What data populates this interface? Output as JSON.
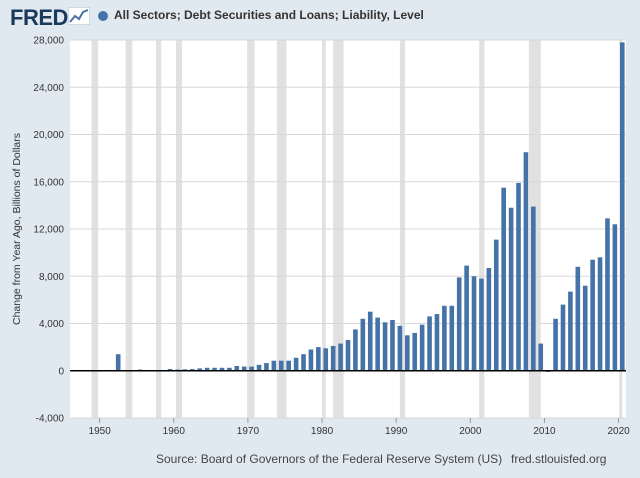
{
  "header": {
    "logo_text": "FRED",
    "series_title": "All Sectors; Debt Securities and Loans; Liability, Level"
  },
  "footer": {
    "source": "Source: Board of Governors of the Federal Reserve System (US)",
    "url": "fred.stlouisfed.org"
  },
  "chart_data": {
    "type": "bar",
    "title": "All Sectors; Debt Securities and Loans; Liability, Level",
    "ylabel": "Change from Year Ago, Billions of Dollars",
    "xlabel": "",
    "ylim": [
      -4000,
      28000
    ],
    "xlim": [
      1946,
      2021
    ],
    "yticks": [
      -4000,
      0,
      4000,
      8000,
      12000,
      16000,
      20000,
      24000,
      28000
    ],
    "ytick_labels": [
      "-4,000",
      "0",
      "4,000",
      "8,000",
      "12,000",
      "16,000",
      "20,000",
      "24,000",
      "28,000"
    ],
    "xticks": [
      1950,
      1960,
      1970,
      1980,
      1990,
      2000,
      2010,
      2020
    ],
    "recessions": [
      [
        1948.9,
        1949.8
      ],
      [
        1953.5,
        1954.4
      ],
      [
        1957.6,
        1958.3
      ],
      [
        1960.3,
        1961.1
      ],
      [
        1969.9,
        1970.9
      ],
      [
        1973.9,
        1975.2
      ],
      [
        1980.0,
        1980.5
      ],
      [
        1981.5,
        1982.9
      ],
      [
        1990.5,
        1991.2
      ],
      [
        2001.2,
        2001.9
      ],
      [
        2007.9,
        2009.5
      ],
      [
        2020.1,
        2020.4
      ]
    ],
    "colors": {
      "bar": "#4572a7",
      "recession": "#e1e1e1",
      "zero_line": "#000000"
    },
    "series": [
      {
        "x": [
          1952,
          1955,
          1959,
          1960,
          1961,
          1962,
          1963,
          1964,
          1965,
          1966,
          1967,
          1968,
          1969,
          1970,
          1971,
          1972,
          1973,
          1974,
          1975,
          1976,
          1977,
          1978,
          1979,
          1980,
          1981,
          1982,
          1983,
          1984,
          1985,
          1986,
          1987,
          1988,
          1989,
          1990,
          1991,
          1992,
          1993,
          1994,
          1995,
          1996,
          1997,
          1998,
          1999,
          2000,
          2001,
          2002,
          2003,
          2004,
          2005,
          2006,
          2007,
          2008,
          2009,
          2010,
          2011,
          2012,
          2013,
          2014,
          2015,
          2016,
          2017,
          2018,
          2019,
          2020
        ],
        "values": [
          1400,
          100,
          150,
          100,
          120,
          150,
          200,
          250,
          250,
          250,
          250,
          400,
          350,
          350,
          500,
          650,
          850,
          850,
          850,
          1100,
          1400,
          1800,
          2000,
          1900,
          2100,
          2300,
          2600,
          3500,
          4400,
          5000,
          4500,
          4100,
          4300,
          3800,
          3000,
          3200,
          3900,
          4600,
          4800,
          5500,
          5500,
          7900,
          8900,
          8000,
          7800,
          8700,
          11100,
          15500,
          13800,
          15900,
          18500,
          13900,
          2300,
          -100,
          4400,
          5600,
          6700,
          8800,
          7200,
          9400,
          9600,
          12900,
          12400,
          27800
        ]
      }
    ]
  }
}
